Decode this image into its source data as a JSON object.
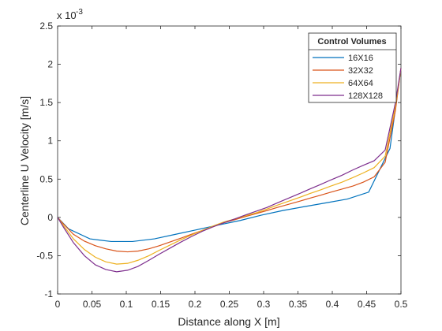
{
  "chart_data": {
    "type": "line",
    "xlabel": "Distance along X [m]",
    "ylabel": "Centerline U Velocity [m/s]",
    "exponent_label": "x 10",
    "exponent_power": "-3",
    "xlim": [
      0,
      0.5
    ],
    "ylim": [
      -1,
      2.5
    ],
    "y_scale_factor": 0.001,
    "x_ticks": [
      0,
      0.05,
      0.1,
      0.15,
      0.2,
      0.25,
      0.3,
      0.35,
      0.4,
      0.45,
      0.5
    ],
    "x_tick_labels": [
      "0",
      "0.05",
      "0.1",
      "0.15",
      "0.2",
      "0.25",
      "0.3",
      "0.35",
      "0.4",
      "0.45",
      "0.5"
    ],
    "y_ticks": [
      -1,
      -0.5,
      0,
      0.5,
      1,
      1.5,
      2,
      2.5
    ],
    "y_tick_labels": [
      "-1",
      "-0.5",
      "0",
      "0.5",
      "1",
      "1.5",
      "2",
      "2.5"
    ],
    "grid": false,
    "legend": {
      "title": "Control Volumes",
      "placement": "top-right"
    },
    "series": [
      {
        "name": "16X16",
        "color": "#0072BD",
        "x": [
          0,
          0.016,
          0.047,
          0.078,
          0.109,
          0.141,
          0.172,
          0.203,
          0.234,
          0.266,
          0.297,
          0.328,
          0.359,
          0.391,
          0.422,
          0.453,
          0.484,
          0.5
        ],
        "y": [
          0,
          -0.15,
          -0.28,
          -0.315,
          -0.315,
          -0.28,
          -0.22,
          -0.16,
          -0.1,
          -0.04,
          0.03,
          0.09,
          0.14,
          0.19,
          0.24,
          0.33,
          0.9,
          1.95
        ]
      },
      {
        "name": "32X32",
        "color": "#D95319",
        "x": [
          0,
          0.008,
          0.023,
          0.039,
          0.055,
          0.07,
          0.086,
          0.102,
          0.117,
          0.133,
          0.148,
          0.164,
          0.18,
          0.195,
          0.211,
          0.227,
          0.242,
          0.258,
          0.273,
          0.289,
          0.305,
          0.32,
          0.336,
          0.352,
          0.367,
          0.383,
          0.398,
          0.414,
          0.43,
          0.445,
          0.461,
          0.477,
          0.492,
          0.5
        ],
        "y": [
          0,
          -0.08,
          -0.22,
          -0.31,
          -0.37,
          -0.41,
          -0.44,
          -0.45,
          -0.44,
          -0.41,
          -0.37,
          -0.32,
          -0.27,
          -0.22,
          -0.17,
          -0.12,
          -0.07,
          -0.03,
          0.01,
          0.05,
          0.09,
          0.13,
          0.17,
          0.21,
          0.25,
          0.29,
          0.33,
          0.37,
          0.41,
          0.46,
          0.53,
          0.72,
          1.4,
          1.95
        ]
      },
      {
        "name": "64X64",
        "color": "#EDB120",
        "x": [
          0,
          0.008,
          0.023,
          0.039,
          0.055,
          0.07,
          0.086,
          0.102,
          0.117,
          0.133,
          0.148,
          0.164,
          0.18,
          0.195,
          0.211,
          0.227,
          0.242,
          0.258,
          0.273,
          0.289,
          0.305,
          0.32,
          0.336,
          0.352,
          0.367,
          0.383,
          0.398,
          0.414,
          0.43,
          0.445,
          0.461,
          0.477,
          0.492,
          0.5
        ],
        "y": [
          0,
          -0.1,
          -0.28,
          -0.42,
          -0.52,
          -0.58,
          -0.61,
          -0.6,
          -0.56,
          -0.5,
          -0.43,
          -0.36,
          -0.29,
          -0.23,
          -0.17,
          -0.11,
          -0.06,
          -0.02,
          0.02,
          0.06,
          0.11,
          0.16,
          0.21,
          0.26,
          0.31,
          0.36,
          0.41,
          0.46,
          0.52,
          0.58,
          0.65,
          0.8,
          1.45,
          1.95
        ]
      },
      {
        "name": "128X128",
        "color": "#7E2F8E",
        "x": [
          0,
          0.008,
          0.023,
          0.039,
          0.055,
          0.07,
          0.086,
          0.102,
          0.117,
          0.133,
          0.148,
          0.164,
          0.18,
          0.195,
          0.211,
          0.227,
          0.242,
          0.258,
          0.273,
          0.289,
          0.305,
          0.32,
          0.336,
          0.352,
          0.367,
          0.383,
          0.398,
          0.414,
          0.43,
          0.445,
          0.461,
          0.477,
          0.492,
          0.5
        ],
        "y": [
          0,
          -0.12,
          -0.33,
          -0.5,
          -0.62,
          -0.68,
          -0.71,
          -0.69,
          -0.64,
          -0.56,
          -0.48,
          -0.4,
          -0.32,
          -0.25,
          -0.18,
          -0.12,
          -0.07,
          -0.02,
          0.03,
          0.08,
          0.13,
          0.19,
          0.25,
          0.31,
          0.37,
          0.43,
          0.49,
          0.55,
          0.62,
          0.68,
          0.74,
          0.88,
          1.5,
          1.95
        ]
      }
    ]
  }
}
